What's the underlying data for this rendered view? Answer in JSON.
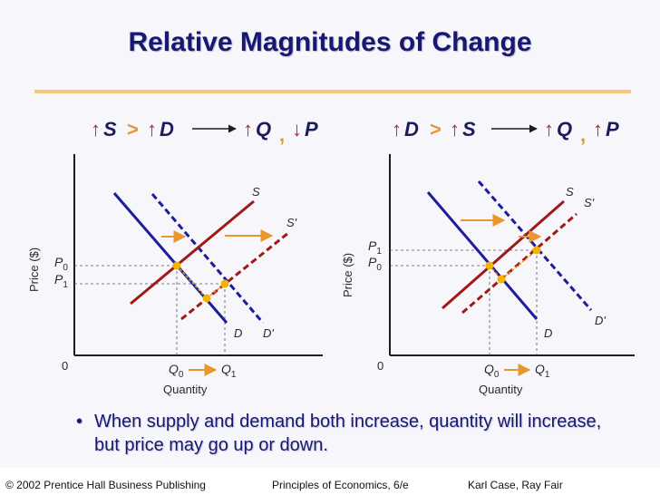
{
  "title": "Relative Magnitudes of Change",
  "colors": {
    "title": "#181874",
    "rule": "#f5c67a",
    "arrow": "#e8962e",
    "supply": "#a01818",
    "demand": "#1c1c9c",
    "point": "#f2b400",
    "label": "#2a2a2a"
  },
  "left_panel": {
    "header": {
      "up1": "↑",
      "var1": "S",
      "gt": ">",
      "up2": "↑",
      "var2": "D",
      "up3": "↑",
      "var3": "Q",
      "comma": ",",
      "dir4": "↓",
      "var4": "P"
    },
    "y_axis_label": "Price ($)",
    "x_axis_label": "Quantity",
    "origin": "0",
    "price_labels": [
      {
        "base": "P",
        "sub": "0"
      },
      {
        "base": "P",
        "sub": "1"
      }
    ],
    "quantity_labels": [
      {
        "base": "Q",
        "sub": "0"
      },
      {
        "base": "Q",
        "sub": "1"
      }
    ],
    "curve_labels": {
      "supply": "S",
      "supply_shifted": "S'",
      "demand": "D",
      "demand_shifted": "D'"
    }
  },
  "right_panel": {
    "header": {
      "up1": "↑",
      "var1": "D",
      "gt": ">",
      "up2": "↑",
      "var2": "S",
      "up3": "↑",
      "var3": "Q",
      "comma": ",",
      "dir4": "↑",
      "var4": "P"
    },
    "y_axis_label": "Price ($)",
    "x_axis_label": "Quantity",
    "origin": "0",
    "price_labels": [
      {
        "base": "P",
        "sub": "1"
      },
      {
        "base": "P",
        "sub": "0"
      }
    ],
    "quantity_labels": [
      {
        "base": "Q",
        "sub": "0"
      },
      {
        "base": "Q",
        "sub": "1"
      }
    ],
    "curve_labels": {
      "supply": "S",
      "supply_shifted": "S'",
      "demand": "D",
      "demand_shifted": "D'"
    }
  },
  "bullet": {
    "symbol": "•",
    "text": "When supply and demand both increase, quantity will increase, but price may go up or down."
  },
  "footer": {
    "publisher": "© 2002 Prentice Hall Business Publishing",
    "book": "Principles of Economics, 6/e",
    "authors": "Karl Case, Ray Fair"
  }
}
